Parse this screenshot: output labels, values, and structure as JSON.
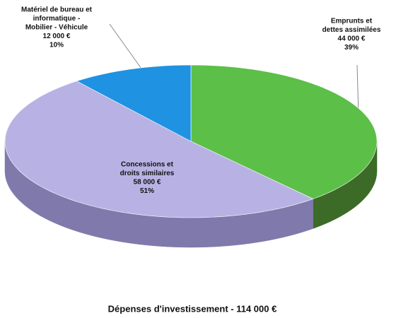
{
  "chart_data": {
    "type": "pie3d",
    "title": "Dépenses d'investissement - 114 000 €",
    "categories": [
      [
        "Emprunts et",
        "dettes assimilées"
      ],
      [
        "Concessions et",
        "droits similaires"
      ],
      [
        "Matériel de bureau et",
        "informatique -",
        "Mobilier - Véhicule"
      ]
    ],
    "values": [
      44000,
      58000,
      12000
    ],
    "value_labels": [
      "44 000 €",
      "58 000 €",
      "12 000 €"
    ],
    "percents": [
      39,
      51,
      10
    ],
    "percent_labels": [
      "39%",
      "51%",
      "10%"
    ],
    "colors": [
      "#5cbf48",
      "#b8b2e4",
      "#1f92e2"
    ],
    "side_colors": [
      "#3c6b28",
      "#8079ab",
      "#1565a0"
    ]
  }
}
